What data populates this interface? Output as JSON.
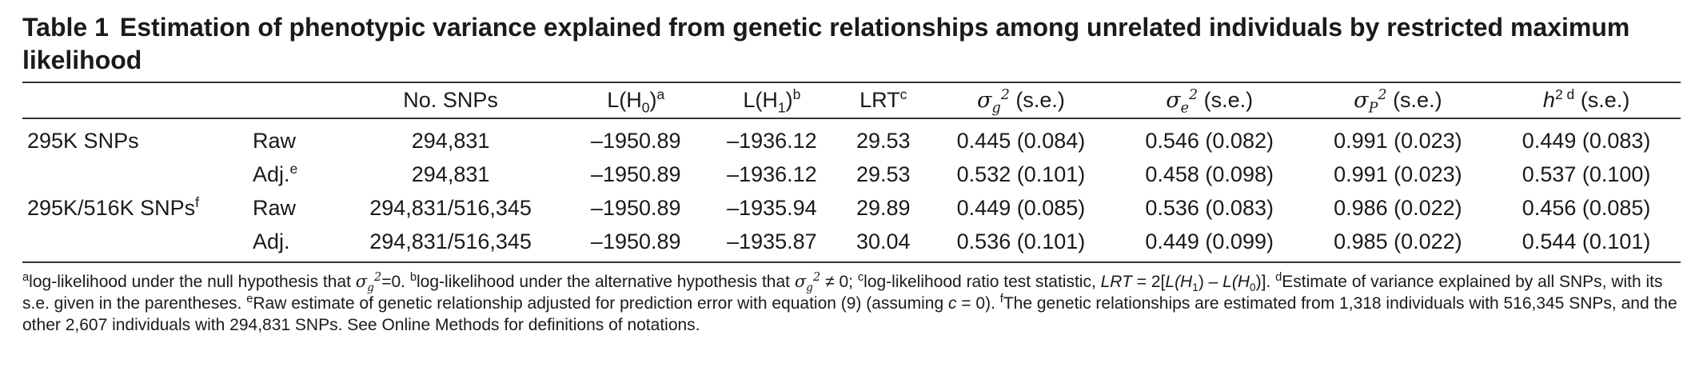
{
  "caption": {
    "number": "Table 1",
    "title": "Estimation of phenotypic variance explained from genetic relationships among unrelated individuals by restricted maximum likelihood"
  },
  "table": {
    "headers": {
      "snps": "No. SNPs",
      "lh0_main": "L(H",
      "lh0_sub": "0",
      "lh0_close": ")",
      "lh0_note": "a",
      "lh1_main": "L(H",
      "lh1_sub": "1",
      "lh1_close": ")",
      "lh1_note": "b",
      "lrt_main": "LRT",
      "lrt_note": "c",
      "sigma_symbol": "σ",
      "sg_sub": "g",
      "se_sub": "e",
      "sp_sub": "P",
      "sq": "2",
      "se_suffix": " (s.e.)",
      "h2_symbol": "h",
      "h2_sup": "2 d"
    },
    "rows": [
      {
        "label": "295K SNPs",
        "label_note": "",
        "type": "Raw",
        "type_note": "",
        "snps": "294,831",
        "lh0": "–1950.89",
        "lh1": "–1936.12",
        "lrt": "29.53",
        "sg": "0.445 (0.084)",
        "se": "0.546 (0.082)",
        "sp": "0.991 (0.023)",
        "h2": "0.449 (0.083)"
      },
      {
        "label": "",
        "label_note": "",
        "type": "Adj.",
        "type_note": "e",
        "snps": "294,831",
        "lh0": "–1950.89",
        "lh1": "–1936.12",
        "lrt": "29.53",
        "sg": "0.532 (0.101)",
        "se": "0.458 (0.098)",
        "sp": "0.991 (0.023)",
        "h2": "0.537 (0.100)"
      },
      {
        "label": "295K/516K SNPs",
        "label_note": "f",
        "type": "Raw",
        "type_note": "",
        "snps": "294,831/516,345",
        "lh0": "–1950.89",
        "lh1": "–1935.94",
        "lrt": "29.89",
        "sg": "0.449 (0.085)",
        "se": "0.536 (0.083)",
        "sp": "0.986 (0.022)",
        "h2": "0.456 (0.085)"
      },
      {
        "label": "",
        "label_note": "",
        "type": "Adj.",
        "type_note": "",
        "snps": "294,831/516,345",
        "lh0": "–1950.89",
        "lh1": "–1935.87",
        "lrt": "30.04",
        "sg": "0.536 (0.101)",
        "se": "0.449 (0.099)",
        "sp": "0.985 (0.022)",
        "h2": "0.544 (0.101)"
      }
    ]
  },
  "footnotes": {
    "a_mark": "a",
    "a_text1": "log-likelihood under the null hypothesis that ",
    "a_text2": "=0. ",
    "b_mark": "b",
    "b_text1": "log-likelihood under the alternative hypothesis that ",
    "b_text2": " ≠ 0; ",
    "c_mark": "c",
    "c_text1": "log-likelihood ratio test statistic, ",
    "c_lrt": "LRT",
    "c_eq": " = 2[",
    "c_lh1a": "L",
    "c_lh1b": "(H",
    "c_minus": ") – ",
    "c_lh0a": "L",
    "c_lh0b": "(H",
    "c_end": ")]. ",
    "d_mark": "d",
    "d_text": "Estimate of variance explained by all SNPs, with its s.e. given in the parentheses. ",
    "e_mark": "e",
    "e_text1": "Raw estimate of genetic relationship adjusted for prediction error with equation (9) (assuming ",
    "e_c": "c",
    "e_text2": " = 0). ",
    "f_mark": "f",
    "f_text": "The genetic relationships are estimated from 1,318 individuals with 516,345 SNPs, and the other 2,607 individuals with 294,831 SNPs. See Online Methods for definitions of notations."
  }
}
